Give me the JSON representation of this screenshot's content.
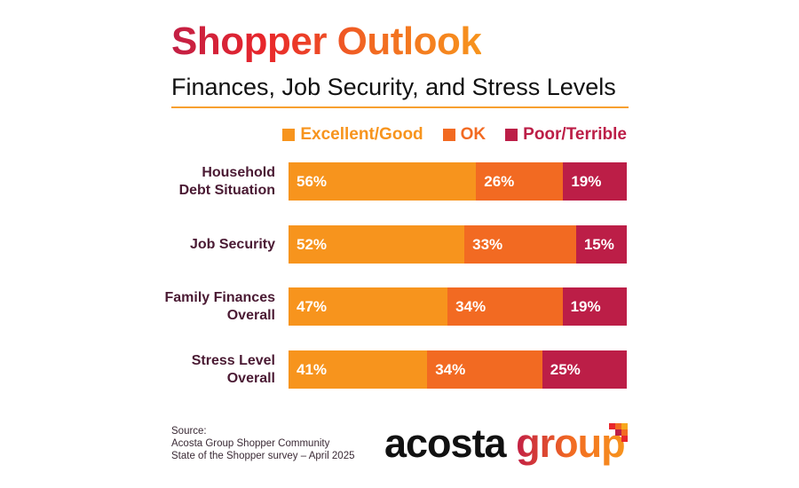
{
  "title": "Shopper Outlook",
  "subtitle": "Finances, Job Security, and Stress Levels",
  "colors": {
    "excellent_good": "#f7941d",
    "ok": "#f26a22",
    "poor_terrible": "#bc1e47"
  },
  "chart_data": {
    "type": "bar",
    "orientation": "horizontal-stacked",
    "title": "Shopper Outlook",
    "subtitle": "Finances, Job Security, and Stress Levels",
    "categories": [
      "Household Debt Situation",
      "Job Security",
      "Family Finances Overall",
      "Stress Level Overall"
    ],
    "category_lines": [
      [
        "Household",
        "Debt Situation"
      ],
      [
        "Job Security"
      ],
      [
        "Family Finances",
        "Overall"
      ],
      [
        "Stress Level",
        "Overall"
      ]
    ],
    "series": [
      {
        "name": "Excellent/Good",
        "color": "#f7941d",
        "values": [
          56,
          52,
          47,
          41
        ]
      },
      {
        "name": "OK",
        "color": "#f26a22",
        "values": [
          26,
          33,
          34,
          34
        ]
      },
      {
        "name": "Poor/Terrible",
        "color": "#bc1e47",
        "values": [
          19,
          15,
          19,
          25
        ]
      }
    ],
    "unit": "%",
    "legend_position": "top-right",
    "grid": false
  },
  "footer": {
    "source_lines": [
      "Source:",
      "Acosta Group Shopper Community",
      "State of the Shopper survey – April 2025"
    ],
    "logo_text": "acosta group",
    "logo_word1": "acosta",
    "logo_word2": "group"
  }
}
